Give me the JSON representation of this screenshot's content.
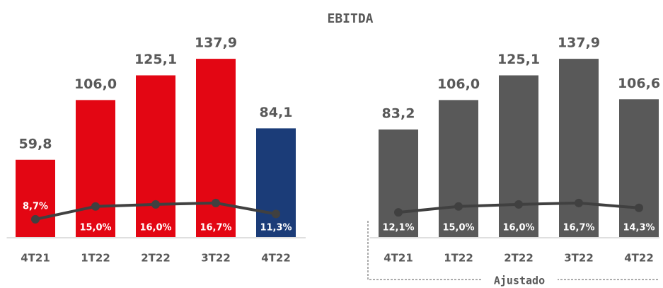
{
  "chart_data": [
    {
      "type": "bar",
      "title": "EBITDA",
      "categories": [
        "4T21",
        "1T22",
        "2T22",
        "3T22",
        "4T22"
      ],
      "series": [
        {
          "values": [
            59.8,
            106.0,
            125.1,
            137.9,
            84.1
          ],
          "value_labels": [
            "59,8",
            "106,0",
            "125,1",
            "137,9",
            "84,1"
          ],
          "colors": [
            "#e30613",
            "#e30613",
            "#e30613",
            "#e30613",
            "#1b3c78"
          ]
        },
        {
          "type": "line",
          "axis": "y2",
          "color": "#404040",
          "values": [
            8.7,
            15.0,
            16.0,
            16.7,
            11.3
          ],
          "value_labels": [
            "8,7%",
            "15,0%",
            "16,0%",
            "16,7%",
            "11,3%"
          ]
        }
      ],
      "ylim": [
        0,
        150
      ],
      "y2lim": [
        0,
        95
      ]
    },
    {
      "type": "bar",
      "label": "Ajustado",
      "categories": [
        "4T21",
        "1T22",
        "2T22",
        "3T22",
        "4T22"
      ],
      "series": [
        {
          "values": [
            83.2,
            106.0,
            125.1,
            137.9,
            106.6
          ],
          "value_labels": [
            "83,2",
            "106,0",
            "125,1",
            "137,9",
            "106,6"
          ],
          "colors": [
            "#595959",
            "#595959",
            "#595959",
            "#595959",
            "#595959"
          ]
        },
        {
          "type": "line",
          "axis": "y2",
          "color": "#404040",
          "values": [
            12.1,
            15.0,
            16.0,
            16.7,
            14.3
          ],
          "value_labels": [
            "12,1%",
            "15,0%",
            "16,0%",
            "16,7%",
            "14,3%"
          ]
        }
      ],
      "ylim": [
        0,
        150
      ],
      "y2lim": [
        0,
        95
      ]
    }
  ]
}
